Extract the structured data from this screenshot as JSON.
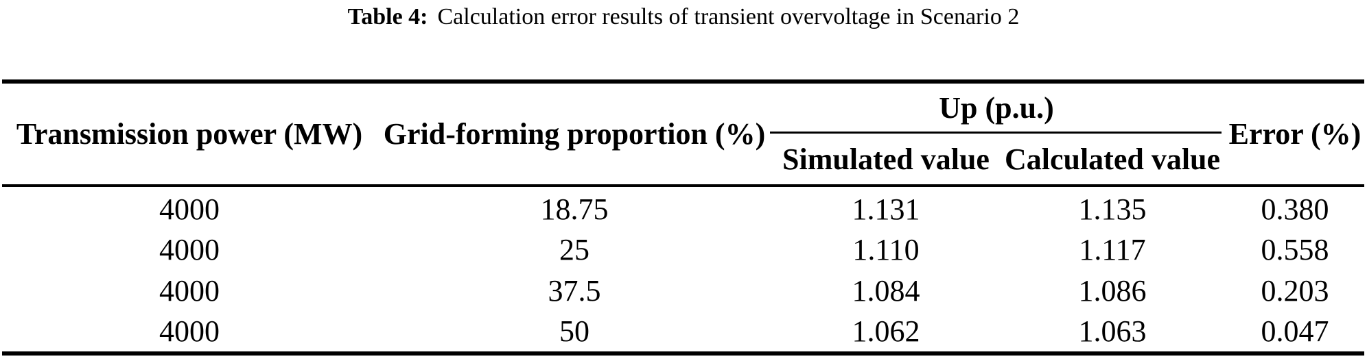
{
  "colors": {
    "text": "#000000",
    "background": "#ffffff",
    "rule": "#000000"
  },
  "caption": {
    "label": "Table 4:",
    "text": "Calculation error results of transient overvoltage in Scenario 2"
  },
  "table": {
    "headers": {
      "transmission_power": "Transmission power (MW)",
      "grid_forming": "Grid-forming proportion (%)",
      "up_group": "Up (p.u.)",
      "simulated": "Simulated value",
      "calculated": "Calculated value",
      "error": "Error (%)"
    },
    "rows": [
      [
        "4000",
        "18.75",
        "1.131",
        "1.135",
        "0.380"
      ],
      [
        "4000",
        "25",
        "1.110",
        "1.117",
        "0.558"
      ],
      [
        "4000",
        "37.5",
        "1.084",
        "1.086",
        "0.203"
      ],
      [
        "4000",
        "50",
        "1.062",
        "1.063",
        "0.047"
      ]
    ]
  },
  "chart_data": {
    "type": "table",
    "title": "Table 4: Calculation error results of transient overvoltage in Scenario 2",
    "columns": [
      "Transmission power (MW)",
      "Grid-forming proportion (%)",
      "Up (p.u.) — Simulated value",
      "Up (p.u.) — Calculated value",
      "Error (%)"
    ],
    "rows": [
      [
        4000,
        18.75,
        1.131,
        1.135,
        0.38
      ],
      [
        4000,
        25,
        1.11,
        1.117,
        0.558
      ],
      [
        4000,
        37.5,
        1.084,
        1.086,
        0.203
      ],
      [
        4000,
        50,
        1.062,
        1.063,
        0.047
      ]
    ]
  }
}
